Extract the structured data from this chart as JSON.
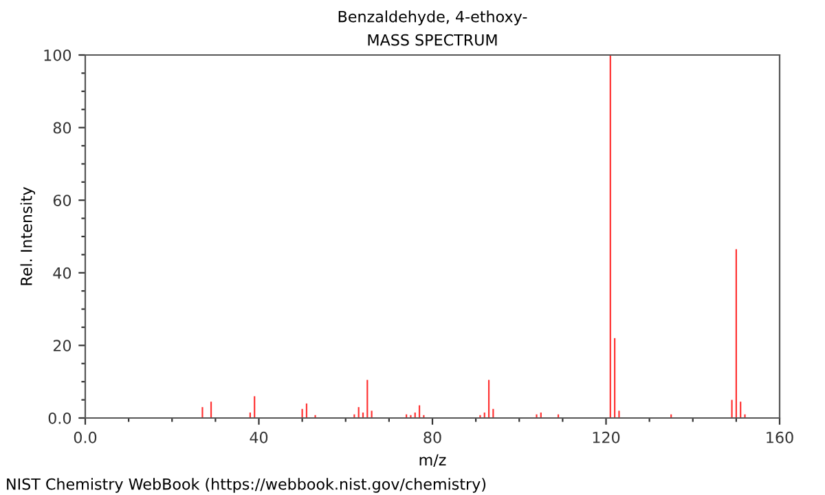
{
  "chart_data": {
    "type": "bar",
    "title": "Benzaldehyde, 4-ethoxy-",
    "subtitle": "MASS SPECTRUM",
    "xlabel": "m/z",
    "ylabel": "Rel. Intensity",
    "x": [
      27,
      29,
      38,
      39,
      50,
      51,
      53,
      62,
      63,
      64,
      65,
      66,
      74,
      75,
      76,
      77,
      78,
      91,
      92,
      93,
      94,
      104,
      105,
      109,
      121,
      122,
      123,
      135,
      149,
      150,
      151,
      152
    ],
    "values": [
      3,
      4.5,
      1.5,
      6,
      2.5,
      4,
      0.8,
      1,
      3,
      1.5,
      10.5,
      2,
      1,
      0.8,
      1.5,
      3.5,
      0.8,
      0.8,
      1.5,
      10.5,
      2.5,
      1,
      1.5,
      1,
      100,
      22,
      2,
      1,
      5,
      46.5,
      4.5,
      1
    ],
    "color": "#ff3333",
    "xlim": [
      0,
      160
    ],
    "ylim": [
      0,
      100
    ],
    "xticks": [
      {
        "value": 0,
        "label": "0.0"
      },
      {
        "value": 10,
        "label": null
      },
      {
        "value": 20,
        "label": null
      },
      {
        "value": 30,
        "label": null
      },
      40,
      {
        "value": 50,
        "label": null
      },
      {
        "value": 60,
        "label": null
      },
      {
        "value": 70,
        "label": null
      },
      80,
      {
        "value": 90,
        "label": null
      },
      {
        "value": 100,
        "label": null
      },
      {
        "value": 110,
        "label": null
      },
      120,
      {
        "value": 130,
        "label": null
      },
      {
        "value": 140,
        "label": null
      },
      {
        "value": 150,
        "label": null
      },
      160
    ],
    "yticks": [
      {
        "value": 0,
        "label": "0.0"
      },
      {
        "value": 5,
        "label": null
      },
      {
        "value": 10,
        "label": null
      },
      {
        "value": 15,
        "label": null
      },
      20,
      {
        "value": 25,
        "label": null
      },
      {
        "value": 30,
        "label": null
      },
      {
        "value": 35,
        "label": null
      },
      40,
      {
        "value": 45,
        "label": null
      },
      {
        "value": 50,
        "label": null
      },
      {
        "value": 55,
        "label": null
      },
      60,
      {
        "value": 65,
        "label": null
      },
      {
        "value": 70,
        "label": null
      },
      {
        "value": 75,
        "label": null
      },
      80,
      {
        "value": 85,
        "label": null
      },
      {
        "value": 90,
        "label": null
      },
      {
        "value": 95,
        "label": null
      },
      100
    ],
    "annotations": [
      "NIST Chemistry WebBook (https://webbook.nist.gov/chemistry)"
    ]
  }
}
